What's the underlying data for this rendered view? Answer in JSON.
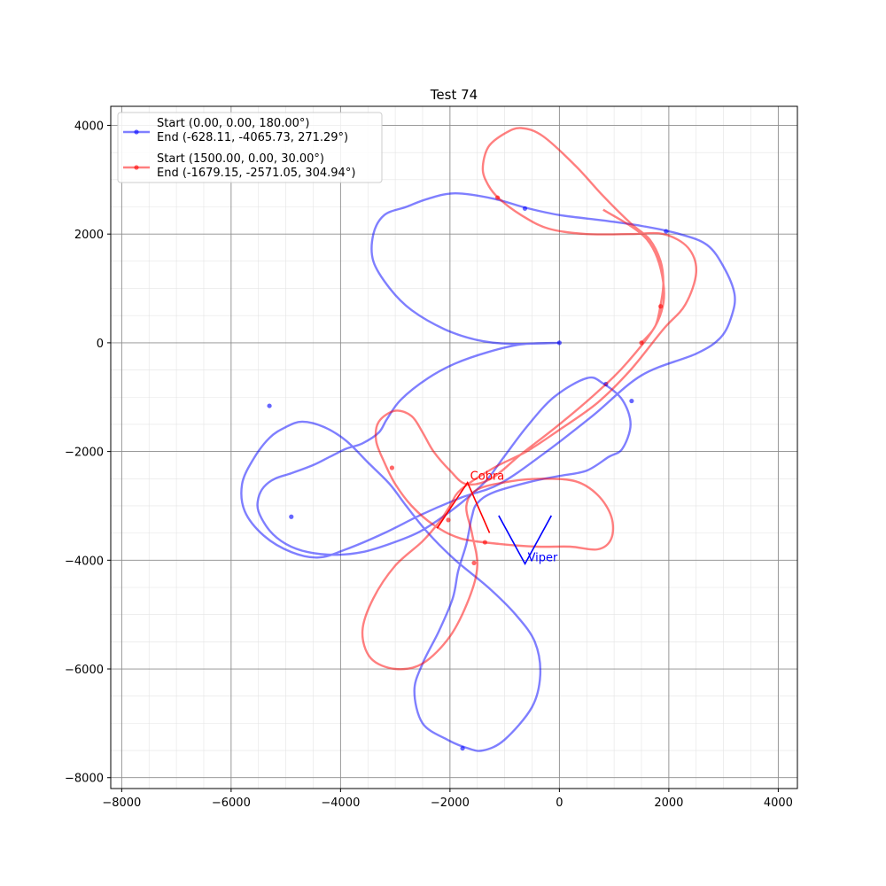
{
  "chart_data": {
    "type": "line",
    "title": "Test 74",
    "xlabel": "",
    "ylabel": "",
    "xlim": [
      -8200,
      4350
    ],
    "ylim": [
      -8200,
      4350
    ],
    "xticks": [
      -8000,
      -6000,
      -4000,
      -2000,
      0,
      2000,
      4000
    ],
    "yticks": [
      -8000,
      -6000,
      -4000,
      -2000,
      0,
      2000,
      4000
    ],
    "xtick_labels": [
      "−8000",
      "−6000",
      "−4000",
      "−2000",
      "0",
      "2000",
      "4000"
    ],
    "ytick_labels": [
      "−8000",
      "−6000",
      "−4000",
      "−2000",
      "0",
      "2000",
      "4000"
    ],
    "grid": true,
    "minor_grid": true,
    "legend_position": "top-left",
    "series": [
      {
        "name": "Start (0.00, 0.00, 180.00°)\n End  (-628.11, -4065.73, 271.29°)",
        "legend_lines": [
          "Start (0.00, 0.00, 180.00°)",
          " End  (-628.11, -4065.73, 271.29°)"
        ],
        "color": "#0000ff",
        "path": [
          [
            0,
            0
          ],
          [
            -700,
            -30
          ],
          [
            -1300,
            -170
          ],
          [
            -1900,
            -380
          ],
          [
            -2400,
            -650
          ],
          [
            -2900,
            -1050
          ],
          [
            -3150,
            -1400
          ],
          [
            -3300,
            -1650
          ],
          [
            -3600,
            -1850
          ],
          [
            -3900,
            -1950
          ],
          [
            -4200,
            -2100
          ],
          [
            -4500,
            -2250
          ],
          [
            -4900,
            -2400
          ],
          [
            -5200,
            -2500
          ],
          [
            -5400,
            -2650
          ],
          [
            -5500,
            -2850
          ],
          [
            -5500,
            -3100
          ],
          [
            -5300,
            -3450
          ],
          [
            -5000,
            -3700
          ],
          [
            -4600,
            -3850
          ],
          [
            -4100,
            -3900
          ],
          [
            -3600,
            -3850
          ],
          [
            -3100,
            -3700
          ],
          [
            -2600,
            -3500
          ],
          [
            -2200,
            -3250
          ],
          [
            -1800,
            -2950
          ],
          [
            -1350,
            -2550
          ],
          [
            -1050,
            -2150
          ],
          [
            -600,
            -1550
          ],
          [
            -100,
            -1000
          ],
          [
            500,
            -650
          ],
          [
            800,
            -750
          ],
          [
            1150,
            -1050
          ],
          [
            1300,
            -1500
          ],
          [
            1150,
            -1950
          ],
          [
            900,
            -2100
          ],
          [
            500,
            -2350
          ],
          [
            0,
            -2450
          ],
          [
            -500,
            -2550
          ],
          [
            -1200,
            -2750
          ],
          [
            -1500,
            -2950
          ],
          [
            -1600,
            -3200
          ],
          [
            -1700,
            -3700
          ],
          [
            -1850,
            -4200
          ],
          [
            -1950,
            -4700
          ],
          [
            -2200,
            -5300
          ],
          [
            -2500,
            -5900
          ],
          [
            -2650,
            -6400
          ],
          [
            -2500,
            -7000
          ],
          [
            -2050,
            -7300
          ],
          [
            -1700,
            -7450
          ],
          [
            -1400,
            -7500
          ],
          [
            -1000,
            -7300
          ],
          [
            -500,
            -6700
          ],
          [
            -350,
            -6100
          ],
          [
            -450,
            -5500
          ],
          [
            -800,
            -5000
          ],
          [
            -1300,
            -4500
          ],
          [
            -1900,
            -4000
          ],
          [
            -2400,
            -3500
          ],
          [
            -2800,
            -3000
          ],
          [
            -3100,
            -2600
          ],
          [
            -3500,
            -2200
          ],
          [
            -3900,
            -1800
          ],
          [
            -4300,
            -1550
          ],
          [
            -4700,
            -1450
          ],
          [
            -5000,
            -1550
          ],
          [
            -5300,
            -1750
          ],
          [
            -5600,
            -2150
          ],
          [
            -5800,
            -2600
          ],
          [
            -5750,
            -3100
          ],
          [
            -5400,
            -3550
          ],
          [
            -4900,
            -3850
          ],
          [
            -4400,
            -3950
          ],
          [
            -3900,
            -3800
          ],
          [
            -3200,
            -3500
          ],
          [
            -2500,
            -3150
          ],
          [
            -1800,
            -2850
          ],
          [
            -1100,
            -2600
          ],
          [
            -300,
            -2050
          ],
          [
            600,
            -1350
          ],
          [
            1500,
            -600
          ],
          [
            2500,
            -200
          ],
          [
            2950,
            100
          ],
          [
            3150,
            500
          ],
          [
            3200,
            900
          ],
          [
            3000,
            1400
          ],
          [
            2700,
            1800
          ],
          [
            2200,
            2000
          ],
          [
            1500,
            2150
          ],
          [
            800,
            2250
          ],
          [
            0,
            2350
          ],
          [
            -600,
            2480
          ],
          [
            -1200,
            2650
          ],
          [
            -1900,
            2750
          ],
          [
            -2400,
            2650
          ],
          [
            -2800,
            2500
          ],
          [
            -3200,
            2350
          ],
          [
            -3400,
            2000
          ],
          [
            -3400,
            1500
          ],
          [
            -3100,
            1000
          ],
          [
            -2700,
            600
          ],
          [
            -2100,
            250
          ],
          [
            -1500,
            50
          ],
          [
            -900,
            -20
          ],
          [
            0,
            0
          ]
        ],
        "markers": [
          [
            0,
            0
          ],
          [
            -630,
            2470
          ],
          [
            1950,
            2050
          ],
          [
            850,
            -760
          ],
          [
            1320,
            -1070
          ],
          [
            -5300,
            -1160
          ],
          [
            -4900,
            -3200
          ],
          [
            -1770,
            -7460
          ]
        ],
        "end_marker": {
          "label": "Viper",
          "x": -628.11,
          "y": -4065.73
        }
      },
      {
        "name": "Start (1500.00, 0.00, 30.00°)\n End  (-1679.15, -2571.05, 304.94°)",
        "legend_lines": [
          "Start (1500.00, 0.00, 30.00°)",
          " End  (-1679.15, -2571.05, 304.94°)"
        ],
        "color": "#ff0000",
        "path": [
          [
            1500,
            0
          ],
          [
            1750,
            300
          ],
          [
            1850,
            700
          ],
          [
            1900,
            1100
          ],
          [
            1850,
            1500
          ],
          [
            1650,
            1900
          ],
          [
            1300,
            2200
          ],
          [
            800,
            2700
          ],
          [
            300,
            3250
          ],
          [
            -300,
            3800
          ],
          [
            -700,
            3950
          ],
          [
            -1000,
            3850
          ],
          [
            -1300,
            3600
          ],
          [
            -1400,
            3200
          ],
          [
            -1300,
            2900
          ],
          [
            -1100,
            2650
          ],
          [
            -700,
            2350
          ],
          [
            -200,
            2100
          ],
          [
            500,
            2000
          ],
          [
            1300,
            2000
          ],
          [
            1900,
            2000
          ],
          [
            2350,
            1750
          ],
          [
            2500,
            1300
          ],
          [
            2300,
            700
          ],
          [
            1900,
            250
          ],
          [
            1300,
            -500
          ],
          [
            700,
            -1100
          ],
          [
            0,
            -1600
          ],
          [
            -600,
            -2000
          ],
          [
            -1200,
            -2300
          ],
          [
            -1800,
            -2700
          ],
          [
            -2000,
            -3000
          ],
          [
            -2200,
            -3300
          ],
          [
            -2500,
            -3650
          ],
          [
            -3000,
            -4100
          ],
          [
            -3400,
            -4700
          ],
          [
            -3600,
            -5300
          ],
          [
            -3450,
            -5800
          ],
          [
            -3000,
            -6000
          ],
          [
            -2500,
            -5900
          ],
          [
            -2000,
            -5400
          ],
          [
            -1650,
            -4700
          ],
          [
            -1500,
            -4100
          ],
          [
            -1600,
            -3500
          ],
          [
            -1700,
            -3000
          ],
          [
            -1500,
            -2700
          ],
          [
            -900,
            -2550
          ],
          [
            -300,
            -2500
          ],
          [
            300,
            -2550
          ],
          [
            700,
            -2800
          ],
          [
            950,
            -3200
          ],
          [
            950,
            -3600
          ],
          [
            700,
            -3800
          ],
          [
            200,
            -3750
          ],
          [
            -400,
            -3750
          ],
          [
            -1100,
            -3700
          ],
          [
            -1800,
            -3600
          ],
          [
            -2300,
            -3350
          ],
          [
            -2700,
            -3000
          ],
          [
            -3000,
            -2600
          ],
          [
            -3200,
            -2200
          ],
          [
            -3350,
            -1800
          ],
          [
            -3300,
            -1450
          ],
          [
            -3000,
            -1250
          ],
          [
            -2700,
            -1350
          ],
          [
            -2500,
            -1650
          ],
          [
            -2300,
            -2000
          ],
          [
            -2000,
            -2350
          ],
          [
            -1700,
            -2600
          ],
          [
            -1250,
            -2500
          ],
          [
            -700,
            -2050
          ],
          [
            0,
            -1500
          ],
          [
            700,
            -900
          ],
          [
            1250,
            -350
          ],
          [
            1800,
            400
          ],
          [
            1900,
            1100
          ],
          [
            1600,
            1900
          ],
          [
            800,
            2450
          ]
        ],
        "markers": [
          [
            1500,
            0
          ],
          [
            1850,
            670
          ],
          [
            -1130,
            2670
          ],
          [
            -2030,
            -3260
          ],
          [
            -1360,
            -3670
          ],
          [
            -1560,
            -4050
          ],
          [
            -3060,
            -2300
          ]
        ],
        "end_marker": {
          "label": "Cobra",
          "x": -1679.15,
          "y": -2571.05
        }
      }
    ]
  }
}
